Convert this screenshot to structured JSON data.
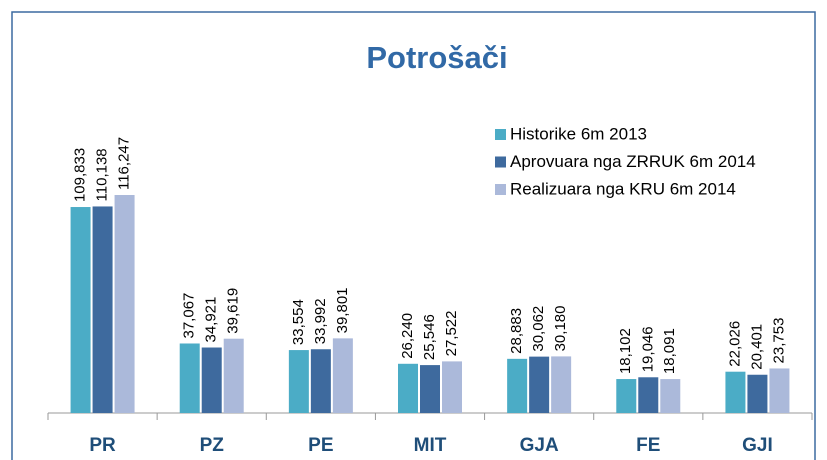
{
  "chart_data": {
    "type": "bar",
    "title": "Potrošači",
    "categories": [
      "PR",
      "PZ",
      "PE",
      "MIT",
      "GJA",
      "FE",
      "GJI"
    ],
    "series": [
      {
        "name": "Historike 6m 2013",
        "color": "#4bacc6",
        "values": [
          109833,
          37067,
          33554,
          26240,
          28883,
          18102,
          22026
        ],
        "value_labels": [
          "109,833",
          "37,067",
          "33,554",
          "26,240",
          "28,883",
          "18,102",
          "22,026"
        ]
      },
      {
        "name": "Aprovuara nga ZRRUK 6m 2014",
        "color": "#3e6a9e",
        "values": [
          110138,
          34921,
          33992,
          25546,
          30062,
          19046,
          20401
        ],
        "value_labels": [
          "110,138",
          "34,921",
          "33,992",
          "25,546",
          "30,062",
          "19,046",
          "20,401"
        ]
      },
      {
        "name": "Realizuara nga KRU 6m 2014",
        "color": "#abb9da",
        "values": [
          116247,
          39619,
          39801,
          27522,
          30180,
          18091,
          23753
        ],
        "value_labels": [
          "116,247",
          "39,619",
          "39,801",
          "27,522",
          "30,180",
          "18,091",
          "23,753"
        ]
      }
    ],
    "legend": "upper right"
  }
}
